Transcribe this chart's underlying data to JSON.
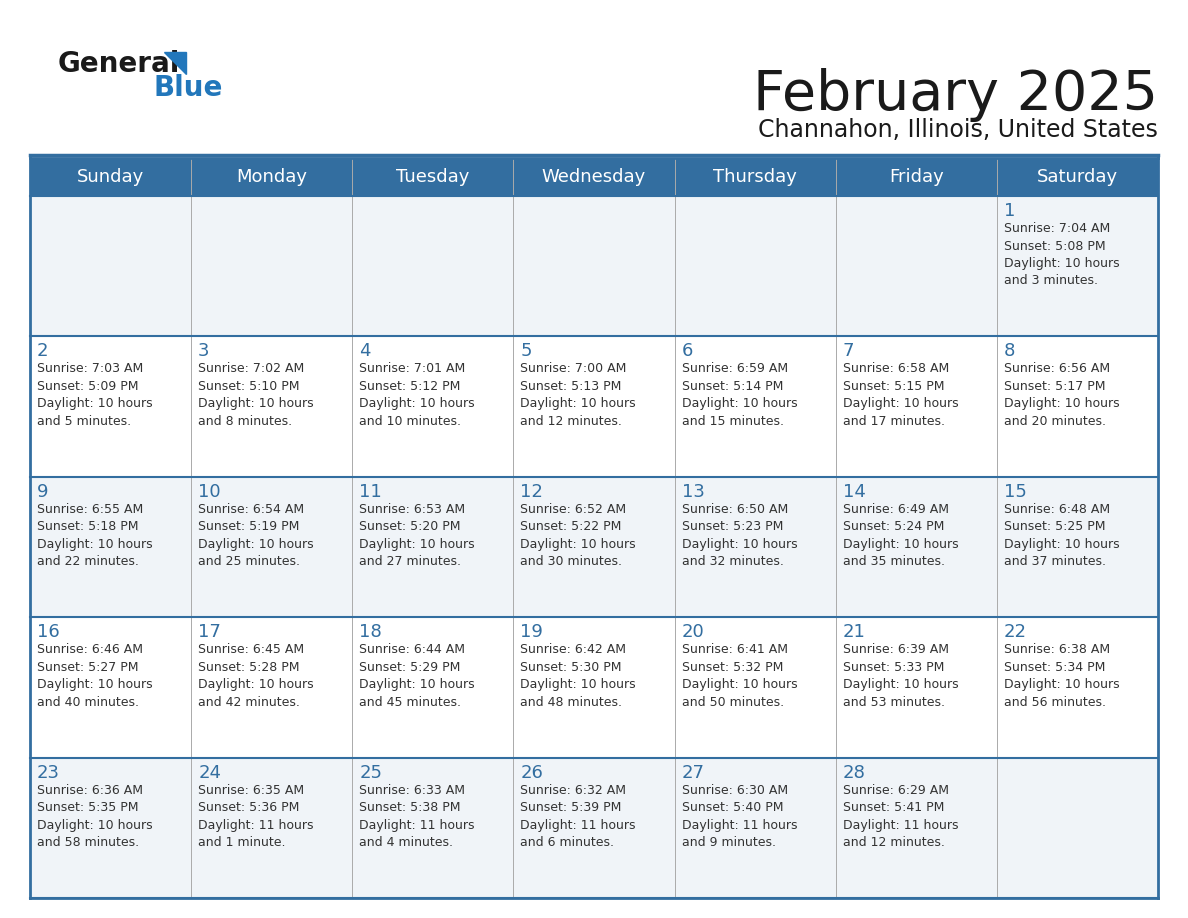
{
  "title": "February 2025",
  "subtitle": "Channahon, Illinois, United States",
  "header_bg": "#336ea0",
  "header_text_color": "#ffffff",
  "cell_bg_light": "#f0f4f8",
  "cell_bg_white": "#ffffff",
  "day_number_color": "#336ea0",
  "text_color": "#333333",
  "border_color": "#336ea0",
  "days_of_week": [
    "Sunday",
    "Monday",
    "Tuesday",
    "Wednesday",
    "Thursday",
    "Friday",
    "Saturday"
  ],
  "weeks": [
    [
      {
        "day": null,
        "sunrise": null,
        "sunset": null,
        "daylight": null
      },
      {
        "day": null,
        "sunrise": null,
        "sunset": null,
        "daylight": null
      },
      {
        "day": null,
        "sunrise": null,
        "sunset": null,
        "daylight": null
      },
      {
        "day": null,
        "sunrise": null,
        "sunset": null,
        "daylight": null
      },
      {
        "day": null,
        "sunrise": null,
        "sunset": null,
        "daylight": null
      },
      {
        "day": null,
        "sunrise": null,
        "sunset": null,
        "daylight": null
      },
      {
        "day": 1,
        "sunrise": "7:04 AM",
        "sunset": "5:08 PM",
        "daylight": "10 hours\nand 3 minutes."
      }
    ],
    [
      {
        "day": 2,
        "sunrise": "7:03 AM",
        "sunset": "5:09 PM",
        "daylight": "10 hours\nand 5 minutes."
      },
      {
        "day": 3,
        "sunrise": "7:02 AM",
        "sunset": "5:10 PM",
        "daylight": "10 hours\nand 8 minutes."
      },
      {
        "day": 4,
        "sunrise": "7:01 AM",
        "sunset": "5:12 PM",
        "daylight": "10 hours\nand 10 minutes."
      },
      {
        "day": 5,
        "sunrise": "7:00 AM",
        "sunset": "5:13 PM",
        "daylight": "10 hours\nand 12 minutes."
      },
      {
        "day": 6,
        "sunrise": "6:59 AM",
        "sunset": "5:14 PM",
        "daylight": "10 hours\nand 15 minutes."
      },
      {
        "day": 7,
        "sunrise": "6:58 AM",
        "sunset": "5:15 PM",
        "daylight": "10 hours\nand 17 minutes."
      },
      {
        "day": 8,
        "sunrise": "6:56 AM",
        "sunset": "5:17 PM",
        "daylight": "10 hours\nand 20 minutes."
      }
    ],
    [
      {
        "day": 9,
        "sunrise": "6:55 AM",
        "sunset": "5:18 PM",
        "daylight": "10 hours\nand 22 minutes."
      },
      {
        "day": 10,
        "sunrise": "6:54 AM",
        "sunset": "5:19 PM",
        "daylight": "10 hours\nand 25 minutes."
      },
      {
        "day": 11,
        "sunrise": "6:53 AM",
        "sunset": "5:20 PM",
        "daylight": "10 hours\nand 27 minutes."
      },
      {
        "day": 12,
        "sunrise": "6:52 AM",
        "sunset": "5:22 PM",
        "daylight": "10 hours\nand 30 minutes."
      },
      {
        "day": 13,
        "sunrise": "6:50 AM",
        "sunset": "5:23 PM",
        "daylight": "10 hours\nand 32 minutes."
      },
      {
        "day": 14,
        "sunrise": "6:49 AM",
        "sunset": "5:24 PM",
        "daylight": "10 hours\nand 35 minutes."
      },
      {
        "day": 15,
        "sunrise": "6:48 AM",
        "sunset": "5:25 PM",
        "daylight": "10 hours\nand 37 minutes."
      }
    ],
    [
      {
        "day": 16,
        "sunrise": "6:46 AM",
        "sunset": "5:27 PM",
        "daylight": "10 hours\nand 40 minutes."
      },
      {
        "day": 17,
        "sunrise": "6:45 AM",
        "sunset": "5:28 PM",
        "daylight": "10 hours\nand 42 minutes."
      },
      {
        "day": 18,
        "sunrise": "6:44 AM",
        "sunset": "5:29 PM",
        "daylight": "10 hours\nand 45 minutes."
      },
      {
        "day": 19,
        "sunrise": "6:42 AM",
        "sunset": "5:30 PM",
        "daylight": "10 hours\nand 48 minutes."
      },
      {
        "day": 20,
        "sunrise": "6:41 AM",
        "sunset": "5:32 PM",
        "daylight": "10 hours\nand 50 minutes."
      },
      {
        "day": 21,
        "sunrise": "6:39 AM",
        "sunset": "5:33 PM",
        "daylight": "10 hours\nand 53 minutes."
      },
      {
        "day": 22,
        "sunrise": "6:38 AM",
        "sunset": "5:34 PM",
        "daylight": "10 hours\nand 56 minutes."
      }
    ],
    [
      {
        "day": 23,
        "sunrise": "6:36 AM",
        "sunset": "5:35 PM",
        "daylight": "10 hours\nand 58 minutes."
      },
      {
        "day": 24,
        "sunrise": "6:35 AM",
        "sunset": "5:36 PM",
        "daylight": "11 hours\nand 1 minute."
      },
      {
        "day": 25,
        "sunrise": "6:33 AM",
        "sunset": "5:38 PM",
        "daylight": "11 hours\nand 4 minutes."
      },
      {
        "day": 26,
        "sunrise": "6:32 AM",
        "sunset": "5:39 PM",
        "daylight": "11 hours\nand 6 minutes."
      },
      {
        "day": 27,
        "sunrise": "6:30 AM",
        "sunset": "5:40 PM",
        "daylight": "11 hours\nand 9 minutes."
      },
      {
        "day": 28,
        "sunrise": "6:29 AM",
        "sunset": "5:41 PM",
        "daylight": "11 hours\nand 12 minutes."
      },
      {
        "day": null,
        "sunrise": null,
        "sunset": null,
        "daylight": null
      }
    ]
  ],
  "logo_text1": "General",
  "logo_text2": "Blue",
  "logo_triangle_color": "#2277bb",
  "figsize": [
    11.88,
    9.18
  ],
  "dpi": 100
}
